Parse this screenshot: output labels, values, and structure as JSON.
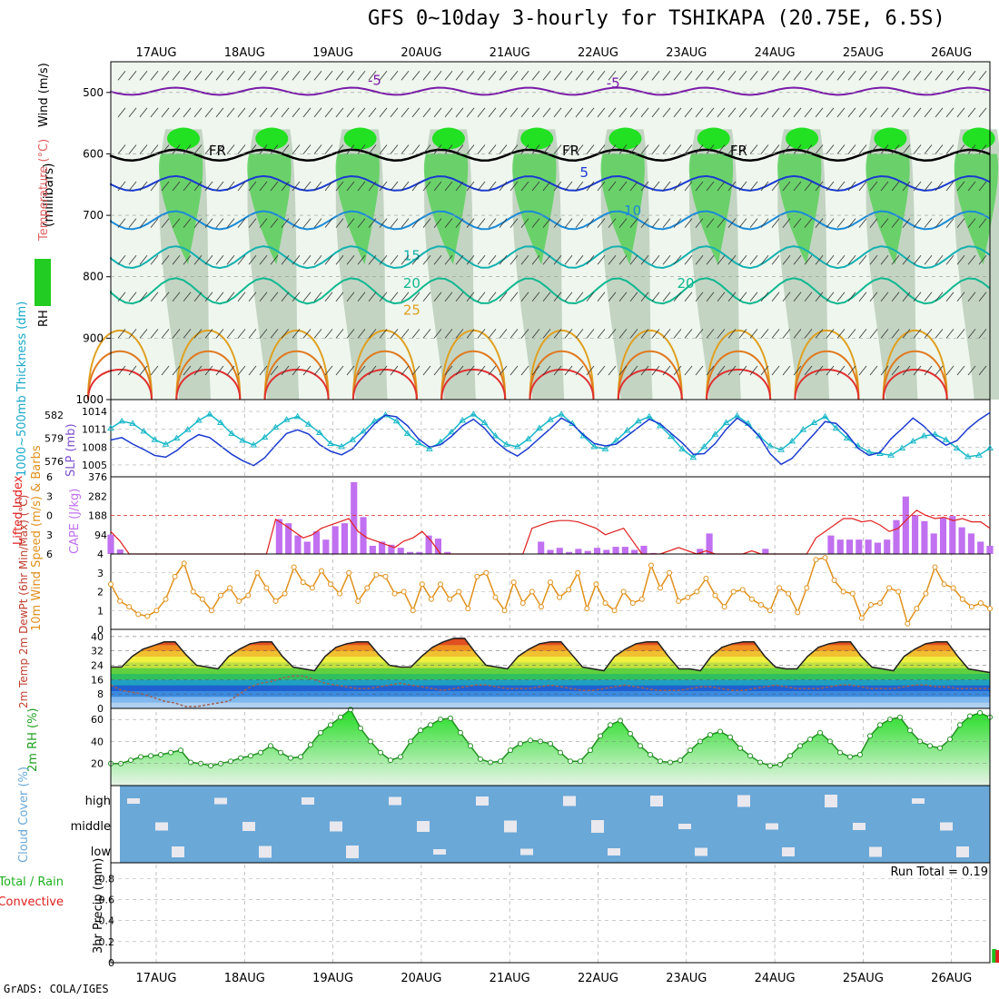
{
  "header": {
    "title": "GFS 0~10day 3-hourly for TSHIKAPA (20.75E, 6.5S)",
    "credit": "GrADS: COLA/IGES"
  },
  "chart_data": [
    {
      "type": "heatmap",
      "panel": "pressure-cross-section",
      "x_ticks": [
        "17AUG",
        "18AUG",
        "19AUG",
        "20AUG",
        "21AUG",
        "22AUG",
        "23AUG",
        "24AUG",
        "25AUG",
        "26AUG"
      ],
      "y_ticks": [
        500,
        600,
        700,
        800,
        900,
        1000
      ],
      "ylim": [
        450,
        1000
      ],
      "ylabel_parts": [
        "RH (%)",
        "Temperature (°C)",
        "Wind (m/s)"
      ],
      "yunit": "(millibars)",
      "temperature_contour_labels": [
        {
          "text": "-5",
          "day": 2.6,
          "p": 488,
          "color": "#7a1aa8"
        },
        {
          "text": "-5",
          "day": 5.3,
          "p": 492,
          "color": "#7a1aa8"
        },
        {
          "text": "FR",
          "day": 0.8,
          "p": 602,
          "color": "#000000"
        },
        {
          "text": "FR",
          "day": 4.8,
          "p": 602,
          "color": "#000000"
        },
        {
          "text": "FR",
          "day": 6.7,
          "p": 602,
          "color": "#000000"
        },
        {
          "text": "5",
          "day": 5.0,
          "p": 638,
          "color": "#1a3ad0"
        },
        {
          "text": "10",
          "day": 5.5,
          "p": 700,
          "color": "#1a8ad8"
        },
        {
          "text": "15",
          "day": 3.0,
          "p": 773,
          "color": "#14b0b0"
        },
        {
          "text": "20",
          "day": 3.0,
          "p": 818,
          "color": "#10b890"
        },
        {
          "text": "20",
          "day": 6.1,
          "p": 818,
          "color": "#10b890"
        },
        {
          "text": "25",
          "day": 3.0,
          "p": 862,
          "color": "#e0a020"
        }
      ],
      "temperature_levels": [
        {
          "t": "-5",
          "p": 498,
          "color": "#7a1aa8"
        },
        {
          "t": "FR",
          "p": 602,
          "color": "#000000"
        },
        {
          "t": "5",
          "p": 648,
          "color": "#1a3ad0"
        },
        {
          "t": "10",
          "p": 708,
          "color": "#1a8ad8"
        },
        {
          "t": "15",
          "p": 768,
          "color": "#14b0b0"
        },
        {
          "t": "20",
          "p": 823,
          "color": "#10b890"
        }
      ],
      "rh_legend": "RH (%)"
    },
    {
      "type": "line",
      "panel": "thickness-slp",
      "ylabel_left": "1000~500mb Thickness (dm)",
      "ylabel_right": "SLP (mb)",
      "left_ticks": [
        576,
        579,
        582
      ],
      "right_ticks": [
        1005,
        1008,
        1011,
        1014
      ],
      "left_ylim": [
        574,
        584
      ],
      "right_ylim": [
        1003,
        1016
      ],
      "series": [
        {
          "name": "Thickness",
          "axis": "left",
          "color": "#18b8c8",
          "values": [
            580.3,
            581.2,
            580.9,
            579.9,
            578.8,
            578.2,
            579.0,
            580.1,
            581.3,
            582.1,
            581.0,
            579.6,
            578.7,
            578.1,
            579.1,
            580.4,
            581.4,
            581.8,
            580.8,
            579.7,
            578.3,
            577.9,
            578.8,
            579.9,
            581.2,
            582.0,
            581.2,
            579.6,
            578.4,
            577.6,
            578.5,
            579.8,
            581.3,
            582.1,
            581.0,
            579.3,
            578.2,
            577.9,
            578.9,
            580.3,
            581.4,
            582.1,
            580.9,
            579.3,
            577.9,
            577.6,
            578.7,
            580.0,
            581.2,
            581.8,
            580.6,
            579.2,
            577.6,
            576.5,
            577.9,
            579.5,
            581.0,
            581.9,
            580.9,
            579.3,
            578.0,
            577.5,
            578.6,
            580.1,
            581.0,
            581.8,
            580.3,
            579.0,
            578.0,
            577.2,
            577.0,
            576.8,
            577.7,
            578.6,
            579.3,
            579.5,
            578.8,
            577.7,
            576.6,
            576.8,
            577.7
          ]
        },
        {
          "name": "SLP",
          "axis": "right",
          "color": "#1a3ad0",
          "values": [
            1009.2,
            1009.6,
            1008.5,
            1007.6,
            1006.6,
            1006.3,
            1007.4,
            1009.0,
            1010.1,
            1009.6,
            1008.2,
            1006.8,
            1005.7,
            1004.9,
            1006.2,
            1008.3,
            1010.3,
            1010.9,
            1010.2,
            1008.4,
            1007.3,
            1006.7,
            1007.7,
            1009.8,
            1011.9,
            1013.4,
            1013.1,
            1011.6,
            1009.4,
            1008.0,
            1008.4,
            1009.8,
            1011.6,
            1012.7,
            1011.2,
            1009.0,
            1007.5,
            1006.5,
            1007.8,
            1009.5,
            1011.1,
            1012.9,
            1011.9,
            1010.1,
            1008.6,
            1008.2,
            1008.5,
            1009.9,
            1011.3,
            1012.7,
            1011.9,
            1010.3,
            1008.7,
            1006.8,
            1006.9,
            1008.6,
            1011.0,
            1012.9,
            1011.7,
            1009.8,
            1006.9,
            1005.1,
            1006.1,
            1008.2,
            1010.2,
            1012.3,
            1012.0,
            1010.2,
            1007.8,
            1006.6,
            1007.1,
            1009.4,
            1011.1,
            1012.9,
            1011.5,
            1009.6,
            1008.3,
            1009.1,
            1011.1,
            1012.6,
            1013.8
          ]
        }
      ]
    },
    {
      "type": "bar",
      "panel": "cape-lifted-index",
      "ylabel_left": "Lifted Index",
      "ylabel_right": "CAPE (J/kg)",
      "left_ticks": [
        -6,
        -3,
        0,
        3,
        6
      ],
      "right_ticks": [
        94,
        188,
        282,
        376
      ],
      "right_ylim": [
        0,
        376
      ],
      "series": [
        {
          "name": "CAPE",
          "color": "#c070f0",
          "values": [
            94,
            22,
            0,
            0,
            0,
            0,
            0,
            0,
            0,
            0,
            0,
            0,
            0,
            0,
            0,
            0,
            0,
            0,
            170,
            150,
            90,
            60,
            110,
            70,
            135,
            150,
            350,
            180,
            40,
            60,
            45,
            30,
            10,
            10,
            90,
            75,
            10,
            0,
            0,
            0,
            0,
            0,
            0,
            0,
            0,
            0,
            60,
            20,
            30,
            10,
            25,
            15,
            30,
            20,
            35,
            35,
            20,
            40,
            5,
            0,
            0,
            0,
            0,
            25,
            100,
            0,
            0,
            0,
            0,
            0,
            25,
            0,
            0,
            0,
            0,
            0,
            0,
            90,
            70,
            70,
            70,
            70,
            55,
            70,
            165,
            280,
            190,
            160,
            100,
            175,
            185,
            130,
            100,
            60,
            40
          ]
        },
        {
          "name": "Lifted Index",
          "color": "#e02020",
          "values": [
            2.5,
            4.0,
            6,
            6,
            6,
            6,
            6,
            6,
            6,
            6,
            6,
            6,
            6,
            6,
            6,
            6,
            6,
            6,
            0.6,
            1.5,
            2.5,
            3.5,
            3.0,
            2.0,
            1.5,
            1.0,
            0.5,
            2.5,
            3.5,
            4.0,
            4.5,
            5.0,
            4.0,
            3.5,
            2.5,
            4.0,
            6,
            6,
            6,
            6,
            6,
            6,
            6,
            6,
            6,
            6,
            2.0,
            1.5,
            1.0,
            0.8,
            0.8,
            1.0,
            1.5,
            2.0,
            3.0,
            2.5,
            2.0,
            4.0,
            6,
            6,
            6,
            5.5,
            5.0,
            5.5,
            6,
            5.5,
            6,
            6,
            6,
            6,
            5.5,
            6,
            6,
            6,
            6,
            6,
            6,
            3.5,
            2.5,
            1.5,
            0.5,
            0.5,
            1.0,
            0.8,
            1.5,
            2.5,
            2.0,
            0.5,
            -0.8,
            0,
            0.5,
            0.3,
            0.8,
            0.5,
            1.0,
            1.0,
            2.0
          ]
        }
      ],
      "reference_line": 0
    },
    {
      "type": "line",
      "panel": "10m-wind",
      "ylabel": "10m Wind Speed (m/s) & Barbs",
      "ticks": [
        0,
        1,
        2,
        3,
        4
      ],
      "ylim": [
        0,
        4
      ],
      "series": [
        {
          "name": "10m Wind Speed",
          "color": "#e0901a",
          "values": [
            2.4,
            1.5,
            1.2,
            0.8,
            0.7,
            1.0,
            1.6,
            2.8,
            3.5,
            2.0,
            1.6,
            1.0,
            1.8,
            2.2,
            1.5,
            1.8,
            3.0,
            2.2,
            1.5,
            1.9,
            3.3,
            2.5,
            2.2,
            3.1,
            2.4,
            1.9,
            3.0,
            1.5,
            2.2,
            2.9,
            2.8,
            1.9,
            2.0,
            1.0,
            2.4,
            1.6,
            2.4,
            1.6,
            2.0,
            1.1,
            2.8,
            3.0,
            1.7,
            1.0,
            2.5,
            1.4,
            2.0,
            1.2,
            2.5,
            1.7,
            2.1,
            3.0,
            1.1,
            2.4,
            1.4,
            1.0,
            2.0,
            1.4,
            1.6,
            3.4,
            2.2,
            3.0,
            1.5,
            1.7,
            2.0,
            2.7,
            1.8,
            1.2,
            2.0,
            2.1,
            1.6,
            1.3,
            1.0,
            2.2,
            1.9,
            0.9,
            2.2,
            3.7,
            3.8,
            2.6,
            2.0,
            1.9,
            0.6,
            1.3,
            1.4,
            2.2,
            2.0,
            0.3,
            1.1,
            1.9,
            3.3,
            2.4,
            2.2,
            1.6,
            1.2,
            1.4,
            1.1
          ]
        }
      ]
    },
    {
      "type": "area",
      "panel": "2m-temperature",
      "ylabel": "2m Temp 2m DewPt (6hr Min/Max) (°C)",
      "ticks": [
        0,
        8,
        16,
        24,
        32,
        40
      ],
      "ylim": [
        0,
        44
      ],
      "series": [
        {
          "name": "2m Temp",
          "color": "#202020",
          "values": [
            23,
            23,
            29,
            33,
            35,
            37,
            37,
            30,
            24,
            23,
            22,
            29,
            33,
            36,
            37,
            37,
            29,
            23,
            22,
            21,
            29,
            34,
            36,
            37,
            37,
            30,
            24,
            23,
            23,
            29,
            34,
            37,
            39,
            39,
            31,
            24,
            23,
            22,
            29,
            33,
            36,
            37,
            37,
            30,
            23,
            22,
            21,
            29,
            33,
            36,
            37,
            37,
            29,
            22,
            22,
            21,
            29,
            34,
            36,
            37,
            37,
            29,
            23,
            22,
            22,
            29,
            34,
            36,
            37,
            37,
            29,
            23,
            22,
            21,
            29,
            33,
            36,
            37,
            37,
            29,
            22,
            21,
            20
          ]
        },
        {
          "name": "2m DewPt",
          "color": "#a06050",
          "values": [
            13,
            10,
            9,
            8,
            6,
            4,
            3,
            1,
            1,
            2,
            3,
            4,
            8,
            12,
            14,
            15,
            17,
            18,
            18,
            16,
            14,
            13,
            12,
            11,
            11,
            12,
            13,
            14,
            13,
            12,
            11,
            10,
            11,
            12,
            13,
            13,
            12,
            11,
            11,
            11,
            12,
            13,
            12,
            11,
            10,
            10,
            11,
            12,
            13,
            12,
            11,
            10,
            10,
            10,
            11,
            12,
            12,
            11,
            10,
            10,
            11,
            12,
            13,
            12,
            11,
            11,
            11,
            12,
            13,
            13,
            12,
            11,
            11,
            11,
            12,
            13,
            13,
            12,
            12,
            11,
            11,
            11,
            11
          ]
        }
      ]
    },
    {
      "type": "area",
      "panel": "2m-rh",
      "ylabel": "2m RH (%)",
      "ticks": [
        20,
        40,
        60
      ],
      "ylim": [
        0,
        70
      ],
      "series": [
        {
          "name": "2m RH",
          "color": "#20a020",
          "values": [
            20,
            20,
            23,
            26,
            27,
            28,
            30,
            32,
            21,
            20,
            18,
            20,
            22,
            25,
            27,
            30,
            36,
            30,
            25,
            26,
            37,
            48,
            55,
            62,
            69,
            52,
            40,
            30,
            23,
            26,
            40,
            50,
            55,
            60,
            61,
            48,
            36,
            24,
            21,
            22,
            32,
            38,
            41,
            40,
            38,
            30,
            22,
            22,
            32,
            45,
            55,
            59,
            47,
            36,
            28,
            22,
            21,
            23,
            32,
            40,
            46,
            49,
            44,
            34,
            27,
            21,
            18,
            19,
            27,
            36,
            42,
            48,
            40,
            30,
            26,
            28,
            45,
            55,
            60,
            62,
            50,
            40,
            36,
            34,
            42,
            55,
            63,
            66,
            62
          ]
        }
      ]
    },
    {
      "type": "heatmap",
      "panel": "cloud-cover",
      "ylabel": "Cloud Cover (%)",
      "rows": [
        "high",
        "middle",
        "low"
      ]
    },
    {
      "type": "bar",
      "panel": "3hr-precip",
      "ylabel_parts": [
        "Total / Rain",
        "Convective",
        "3hr Precip (mm)"
      ],
      "ticks": [
        0,
        0.2,
        0.4,
        0.6,
        0.8
      ],
      "ylim": [
        0,
        0.95
      ],
      "annotation": "Run Total = 0.19",
      "series": [
        {
          "name": "Total",
          "color": "#20c020",
          "values": [
            {
              "day": 9.55,
              "mm": 0.13
            },
            {
              "day": 9.65,
              "mm": 0.06
            }
          ]
        },
        {
          "name": "Convective",
          "color": "#e02020",
          "values": [
            {
              "day": 9.55,
              "mm": 0.12
            },
            {
              "day": 9.65,
              "mm": 0.05
            }
          ]
        }
      ]
    }
  ]
}
